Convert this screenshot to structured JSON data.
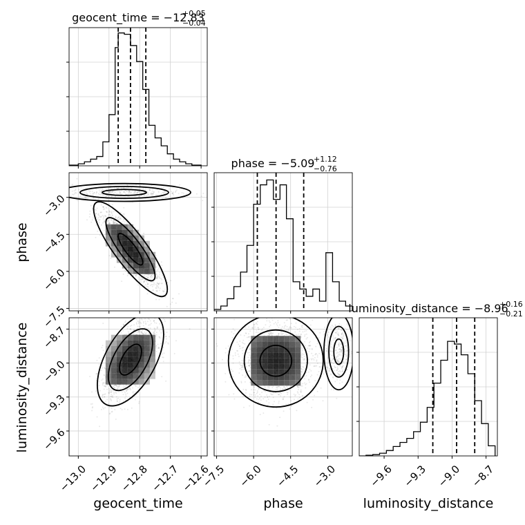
{
  "chart_data": {
    "type": "corner",
    "parameters": [
      "geocent_time",
      "phase",
      "luminosity_distance"
    ],
    "axis_labels": {
      "geocent_time": "geocent_time",
      "phase": "phase",
      "luminosity_distance": "luminosity_distance"
    },
    "ranges": {
      "geocent_time": [
        -13.03,
        -12.58
      ],
      "phase": [
        -7.6,
        -2.0
      ],
      "luminosity_distance": [
        -9.82,
        -8.6
      ]
    },
    "ticks": {
      "geocent_time": {
        "values": [
          -13.0,
          -12.9,
          -12.8,
          -12.7,
          -12.6
        ],
        "labels": [
          "−13.0",
          "−12.9",
          "−12.8",
          "−12.7",
          "−12.6"
        ]
      },
      "phase": {
        "values": [
          -7.5,
          -6.0,
          -4.5,
          -3.0
        ],
        "labels": [
          "−7.5",
          "−6.0",
          "−4.5",
          "−3.0"
        ]
      },
      "luminosity_distance": {
        "values": [
          -9.6,
          -9.3,
          -9.0,
          -8.7
        ],
        "labels": [
          "−9.6",
          "−9.3",
          "−9.0",
          "−8.7"
        ]
      }
    },
    "titles": [
      {
        "param": "geocent_time",
        "lhs": "geocent_time = −12.83",
        "plus": "+0.05",
        "minus": "−0.04"
      },
      {
        "param": "phase",
        "lhs": "phase = −5.09",
        "plus": "+1.12",
        "minus": "−0.76"
      },
      {
        "param": "luminosity_distance",
        "lhs": "luminosity_distance = −8.96",
        "plus": "+0.16",
        "minus": "−0.21"
      }
    ],
    "quantiles": {
      "geocent_time": [
        -12.87,
        -12.83,
        -12.78
      ],
      "phase": [
        -5.85,
        -5.09,
        -3.97
      ],
      "luminosity_distance": [
        -9.17,
        -8.96,
        -8.8
      ]
    },
    "histograms": {
      "geocent_time": {
        "edges": [
          -13.03,
          -13.0,
          -12.98,
          -12.96,
          -12.94,
          -12.92,
          -12.9,
          -12.88,
          -12.87,
          -12.85,
          -12.83,
          -12.81,
          -12.79,
          -12.77,
          -12.75,
          -12.73,
          -12.71,
          -12.69,
          -12.67,
          -12.65,
          -12.63,
          -12.6
        ],
        "counts": [
          1,
          3,
          6,
          10,
          14,
          36,
          77,
          178,
          200,
          198,
          181,
          157,
          115,
          61,
          42,
          30,
          18,
          10,
          6,
          3,
          1
        ],
        "ymax": 208
      },
      "phase": {
        "edges": [
          -7.6,
          -7.33,
          -7.07,
          -6.8,
          -6.53,
          -6.27,
          -6.0,
          -5.73,
          -5.47,
          -5.2,
          -4.93,
          -4.67,
          -4.4,
          -4.13,
          -3.87,
          -3.6,
          -3.33,
          -3.07,
          -2.8,
          -2.53,
          -2.27,
          -2.0
        ],
        "counts": [
          3,
          10,
          25,
          50,
          80,
          135,
          220,
          260,
          270,
          230,
          260,
          190,
          60,
          45,
          30,
          45,
          20,
          120,
          60,
          20,
          10
        ],
        "ymax": 285
      },
      "luminosity_distance": {
        "edges": [
          -9.82,
          -9.76,
          -9.7,
          -9.64,
          -9.58,
          -9.52,
          -9.46,
          -9.4,
          -9.34,
          -9.28,
          -9.22,
          -9.16,
          -9.1,
          -9.04,
          -8.98,
          -8.92,
          -8.86,
          -8.8,
          -8.74,
          -8.68,
          -8.62
        ],
        "counts": [
          0,
          1,
          2,
          4,
          8,
          14,
          20,
          26,
          36,
          50,
          72,
          108,
          142,
          170,
          166,
          150,
          122,
          82,
          48,
          15
        ],
        "ymax": 205
      }
    },
    "contour_levels": [
      0.39,
      0.86,
      0.99
    ],
    "grid": true
  }
}
